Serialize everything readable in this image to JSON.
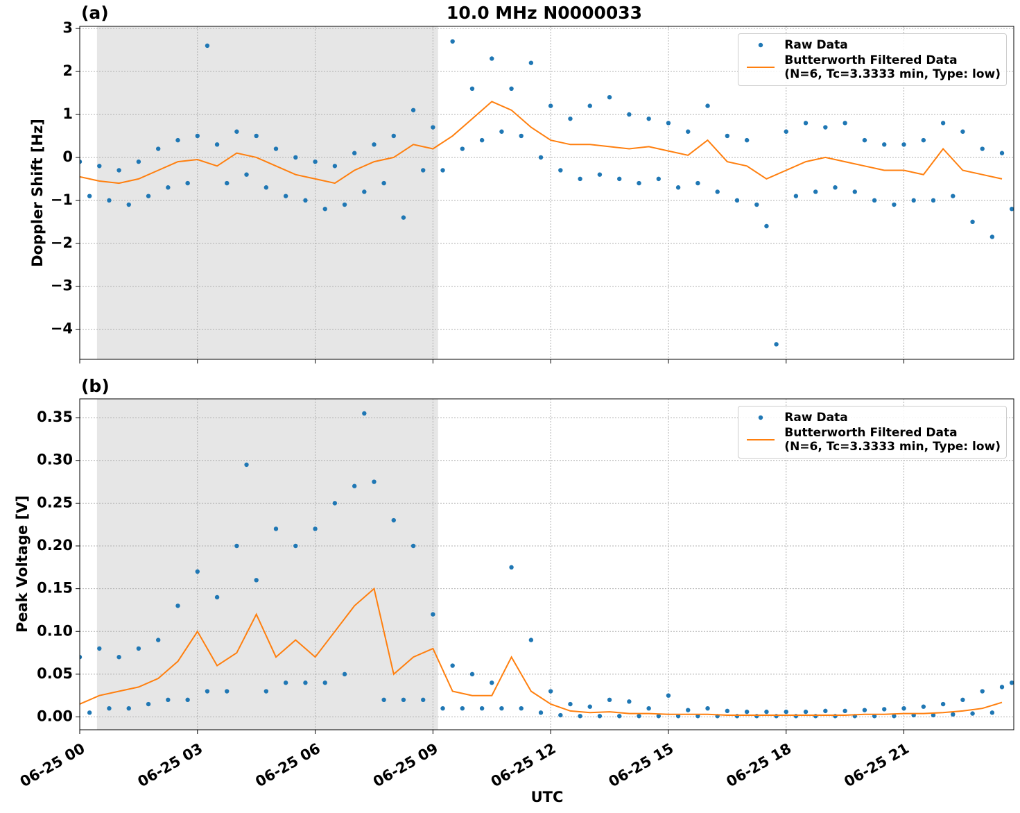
{
  "chart_data": [
    {
      "type": "line",
      "title": "10.0 MHz N0000033",
      "panel": "(a)",
      "y_label": "Doppler Shift [Hz]",
      "xlim": [
        0,
        23.8
      ],
      "ylim": [
        -4.7,
        3.05
      ],
      "yticks": [
        {
          "value": -4,
          "label": "−4"
        },
        {
          "value": -3,
          "label": "−3"
        },
        {
          "value": -2,
          "label": "−2"
        },
        {
          "value": -1,
          "label": "−1"
        },
        0,
        1,
        2,
        3
      ],
      "grid": true,
      "legend": "upper right",
      "shaded_region": [
        0.44,
        9.13
      ],
      "series": [
        {
          "name": "Raw Data",
          "kind": "points",
          "color": "#1f77b4",
          "x": [
            0,
            0.25,
            0.5,
            0.75,
            1,
            1.25,
            1.5,
            1.75,
            2,
            2.25,
            2.5,
            2.75,
            3,
            3.25,
            3.5,
            3.75,
            4,
            4.25,
            4.5,
            4.75,
            5,
            5.25,
            5.5,
            5.75,
            6,
            6.25,
            6.5,
            6.75,
            7,
            7.25,
            7.5,
            7.75,
            8,
            8.25,
            8.5,
            8.75,
            9,
            9.25,
            9.5,
            9.75,
            10,
            10.25,
            10.5,
            10.75,
            11,
            11.25,
            11.5,
            11.75,
            12,
            12.25,
            12.5,
            12.75,
            13,
            13.25,
            13.5,
            13.75,
            14,
            14.25,
            14.5,
            14.75,
            15,
            15.25,
            15.5,
            15.75,
            16,
            16.25,
            16.5,
            16.75,
            17,
            17.25,
            17.5,
            17.75,
            18,
            18.25,
            18.5,
            18.75,
            19,
            19.25,
            19.5,
            19.75,
            20,
            20.25,
            20.5,
            20.75,
            21,
            21.25,
            21.5,
            21.75,
            22,
            22.25,
            22.5,
            22.75,
            23,
            23.25,
            23.5,
            23.75
          ],
          "values": [
            -0.1,
            -0.9,
            -0.2,
            -1.0,
            -0.3,
            -1.1,
            -0.1,
            -0.9,
            0.2,
            -0.7,
            0.4,
            -0.6,
            0.5,
            2.6,
            0.3,
            -0.6,
            0.6,
            -0.4,
            0.5,
            -0.7,
            0.2,
            -0.9,
            0.0,
            -1.0,
            -0.1,
            -1.2,
            -0.2,
            -1.1,
            0.1,
            -0.8,
            0.3,
            -0.6,
            0.5,
            -1.4,
            1.1,
            -0.3,
            0.7,
            -0.3,
            2.7,
            0.2,
            1.6,
            0.4,
            2.3,
            0.6,
            1.6,
            0.5,
            2.2,
            0.0,
            1.2,
            -0.3,
            0.9,
            -0.5,
            1.2,
            -0.4,
            1.4,
            -0.5,
            1.0,
            -0.6,
            0.9,
            -0.5,
            0.8,
            -0.7,
            0.6,
            -0.6,
            1.2,
            -0.8,
            0.5,
            -1.0,
            0.4,
            -1.1,
            -1.6,
            -4.35,
            0.6,
            -0.9,
            0.8,
            -0.8,
            0.7,
            -0.7,
            0.8,
            -0.8,
            0.4,
            -1.0,
            0.3,
            -1.1,
            0.3,
            -1.0,
            0.4,
            -1.0,
            0.8,
            -0.9,
            0.6,
            -1.5,
            0.2,
            -1.85,
            0.1,
            -1.2
          ]
        },
        {
          "name": "Butterworth Filtered Data\n(N=6, Tc=3.3333 min, Type: low)",
          "kind": "line",
          "color": "#ff7f0e",
          "x": [
            0,
            0.5,
            1,
            1.5,
            2,
            2.5,
            3,
            3.5,
            4,
            4.5,
            5,
            5.5,
            6,
            6.5,
            7,
            7.5,
            8,
            8.5,
            9,
            9.5,
            10,
            10.5,
            11,
            11.5,
            12,
            12.5,
            13,
            13.5,
            14,
            14.5,
            15,
            15.5,
            16,
            16.5,
            17,
            17.5,
            18,
            18.5,
            19,
            19.5,
            20,
            20.5,
            21,
            21.5,
            22,
            22.5,
            23,
            23.5
          ],
          "values": [
            -0.45,
            -0.55,
            -0.6,
            -0.5,
            -0.3,
            -0.1,
            -0.05,
            -0.2,
            0.1,
            0,
            -0.2,
            -0.4,
            -0.5,
            -0.6,
            -0.3,
            -0.1,
            0,
            0.3,
            0.2,
            0.5,
            0.9,
            1.3,
            1.1,
            0.7,
            0.4,
            0.3,
            0.3,
            0.25,
            0.2,
            0.25,
            0.15,
            0.05,
            0.4,
            -0.1,
            -0.2,
            -0.5,
            -0.3,
            -0.1,
            0,
            -0.1,
            -0.2,
            -0.3,
            -0.3,
            -0.4,
            0.2,
            -0.3,
            -0.4,
            -0.5
          ]
        }
      ]
    },
    {
      "type": "line",
      "panel": "(b)",
      "y_label": "Peak Voltage [V]",
      "x_label": "UTC",
      "xlim": [
        0,
        23.8
      ],
      "ylim": [
        -0.015,
        0.372
      ],
      "xticks": [
        {
          "value": 0,
          "label": "06-25 00"
        },
        {
          "value": 3,
          "label": "06-25 03"
        },
        {
          "value": 6,
          "label": "06-25 06"
        },
        {
          "value": 9,
          "label": "06-25 09"
        },
        {
          "value": 12,
          "label": "06-25 12"
        },
        {
          "value": 15,
          "label": "06-25 15"
        },
        {
          "value": 18,
          "label": "06-25 18"
        },
        {
          "value": 21,
          "label": "06-25 21"
        }
      ],
      "yticks": [
        {
          "value": 0,
          "label": "0.00"
        },
        {
          "value": 0.05,
          "label": "0.05"
        },
        {
          "value": 0.1,
          "label": "0.10"
        },
        {
          "value": 0.15,
          "label": "0.15"
        },
        {
          "value": 0.2,
          "label": "0.20"
        },
        {
          "value": 0.25,
          "label": "0.25"
        },
        {
          "value": 0.3,
          "label": "0.30"
        },
        {
          "value": 0.35,
          "label": "0.35"
        }
      ],
      "grid": true,
      "legend": "upper right",
      "shaded_region": [
        0.44,
        9.13
      ],
      "series": [
        {
          "name": "Raw Data",
          "kind": "points",
          "color": "#1f77b4",
          "x": [
            0,
            0.25,
            0.5,
            0.75,
            1,
            1.25,
            1.5,
            1.75,
            2,
            2.25,
            2.5,
            2.75,
            3,
            3.25,
            3.5,
            3.75,
            4,
            4.25,
            4.5,
            4.75,
            5,
            5.25,
            5.5,
            5.75,
            6,
            6.25,
            6.5,
            6.75,
            7,
            7.25,
            7.5,
            7.75,
            8,
            8.25,
            8.5,
            8.75,
            9,
            9.25,
            9.5,
            9.75,
            10,
            10.25,
            10.5,
            10.75,
            11,
            11.25,
            11.5,
            11.75,
            12,
            12.25,
            12.5,
            12.75,
            13,
            13.25,
            13.5,
            13.75,
            14,
            14.25,
            14.5,
            14.75,
            15,
            15.25,
            15.5,
            15.75,
            16,
            16.25,
            16.5,
            16.75,
            17,
            17.25,
            17.5,
            17.75,
            18,
            18.25,
            18.5,
            18.75,
            19,
            19.25,
            19.5,
            19.75,
            20,
            20.25,
            20.5,
            20.75,
            21,
            21.25,
            21.5,
            21.75,
            22,
            22.25,
            22.5,
            22.75,
            23,
            23.25,
            23.5,
            23.75
          ],
          "values": [
            0.07,
            0.005,
            0.08,
            0.01,
            0.07,
            0.01,
            0.08,
            0.015,
            0.09,
            0.02,
            0.13,
            0.02,
            0.17,
            0.03,
            0.14,
            0.03,
            0.2,
            0.295,
            0.16,
            0.03,
            0.22,
            0.04,
            0.2,
            0.04,
            0.22,
            0.04,
            0.25,
            0.05,
            0.27,
            0.355,
            0.275,
            0.02,
            0.23,
            0.02,
            0.2,
            0.02,
            0.12,
            0.01,
            0.06,
            0.01,
            0.05,
            0.01,
            0.04,
            0.01,
            0.175,
            0.01,
            0.09,
            0.005,
            0.03,
            0.002,
            0.015,
            0.001,
            0.012,
            0.001,
            0.02,
            0.001,
            0.018,
            0.001,
            0.01,
            0.001,
            0.025,
            0.001,
            0.008,
            0.001,
            0.01,
            0.001,
            0.007,
            0.001,
            0.006,
            0.001,
            0.006,
            0.001,
            0.006,
            0.001,
            0.006,
            0.001,
            0.007,
            0.001,
            0.007,
            0.001,
            0.008,
            0.001,
            0.009,
            0.001,
            0.01,
            0.002,
            0.012,
            0.002,
            0.015,
            0.003,
            0.02,
            0.004,
            0.03,
            0.005,
            0.035,
            0.04
          ]
        },
        {
          "name": "Butterworth Filtered Data\n(N=6, Tc=3.3333 min, Type: low)",
          "kind": "line",
          "color": "#ff7f0e",
          "x": [
            0,
            0.5,
            1,
            1.5,
            2,
            2.5,
            3,
            3.5,
            4,
            4.5,
            5,
            5.5,
            6,
            6.5,
            7,
            7.5,
            8,
            8.5,
            9,
            9.5,
            10,
            10.5,
            11,
            11.5,
            12,
            12.5,
            13,
            13.5,
            14,
            14.5,
            15,
            15.5,
            16,
            16.5,
            17,
            17.5,
            18,
            18.5,
            19,
            19.5,
            20,
            20.5,
            21,
            21.5,
            22,
            22.5,
            23,
            23.5
          ],
          "values": [
            0.015,
            0.025,
            0.03,
            0.035,
            0.045,
            0.065,
            0.1,
            0.06,
            0.075,
            0.12,
            0.07,
            0.09,
            0.07,
            0.1,
            0.13,
            0.15,
            0.05,
            0.07,
            0.08,
            0.03,
            0.025,
            0.025,
            0.07,
            0.03,
            0.015,
            0.007,
            0.005,
            0.006,
            0.004,
            0.004,
            0.003,
            0.003,
            0.003,
            0.002,
            0.002,
            0.002,
            0.002,
            0.002,
            0.002,
            0.002,
            0.003,
            0.003,
            0.004,
            0.004,
            0.005,
            0.007,
            0.01,
            0.017
          ]
        }
      ]
    }
  ]
}
